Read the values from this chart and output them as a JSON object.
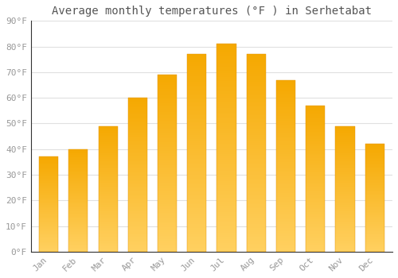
{
  "title": "Average monthly temperatures (°F ) in Serhetabat",
  "months": [
    "Jan",
    "Feb",
    "Mar",
    "Apr",
    "May",
    "Jun",
    "Jul",
    "Aug",
    "Sep",
    "Oct",
    "Nov",
    "Dec"
  ],
  "values": [
    37,
    40,
    49,
    60,
    69,
    77,
    81,
    77,
    67,
    57,
    49,
    42
  ],
  "bar_color_top": "#F5A800",
  "bar_color_bottom": "#FFD060",
  "ylim": [
    0,
    90
  ],
  "yticks": [
    0,
    10,
    20,
    30,
    40,
    50,
    60,
    70,
    80,
    90
  ],
  "ylabel_suffix": "°F",
  "background_color": "#FFFFFF",
  "plot_bg_color": "#FFFFFF",
  "grid_color": "#E0E0E0",
  "title_fontsize": 10,
  "tick_fontsize": 8,
  "tick_color": "#999999",
  "title_color": "#555555"
}
